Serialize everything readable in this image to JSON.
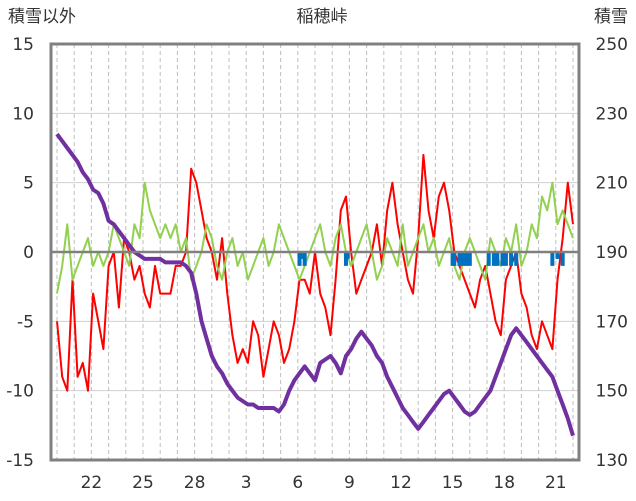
{
  "chart_data": {
    "type": "line",
    "title": "稲穂峠",
    "ylabel_left": "積雪以外",
    "ylabel_right": "積雪",
    "ylim_left": [
      -15,
      15
    ],
    "yticks_left": [
      15,
      10,
      5,
      0,
      -5,
      -10,
      -15
    ],
    "ylim_right": [
      130,
      250
    ],
    "yticks_right": [
      250,
      230,
      210,
      190,
      170,
      150,
      130
    ],
    "x_domain": [
      0,
      30
    ],
    "x_ticks": [
      {
        "label": "22",
        "x": 2
      },
      {
        "label": "25",
        "x": 5
      },
      {
        "label": "28",
        "x": 8
      },
      {
        "label": "3",
        "x": 11
      },
      {
        "label": "6",
        "x": 14
      },
      {
        "label": "9",
        "x": 17
      },
      {
        "label": "12",
        "x": 20
      },
      {
        "label": "15",
        "x": 23
      },
      {
        "label": "18",
        "x": 26
      },
      {
        "label": "21",
        "x": 29
      }
    ],
    "grid": true,
    "colors": {
      "red": "#ff0000",
      "green": "#92d050",
      "purple": "#7030a0",
      "blue": "#0070c0",
      "frame": "#808080",
      "zero": "#808080"
    },
    "series": [
      {
        "color": "red",
        "axis": "left",
        "x": [
          0,
          0.3,
          0.6,
          0.9,
          1.2,
          1.5,
          1.8,
          2.1,
          2.4,
          2.7,
          3,
          3.3,
          3.6,
          3.9,
          4.2,
          4.5,
          4.8,
          5.1,
          5.4,
          5.7,
          6,
          6.3,
          6.6,
          6.9,
          7.2,
          7.5,
          7.8,
          8.1,
          8.4,
          8.7,
          9,
          9.3,
          9.6,
          9.9,
          10.2,
          10.5,
          10.8,
          11.1,
          11.4,
          11.7,
          12,
          12.3,
          12.6,
          12.9,
          13.2,
          13.5,
          13.8,
          14.1,
          14.4,
          14.7,
          15,
          15.3,
          15.6,
          15.9,
          16.2,
          16.5,
          16.8,
          17.1,
          17.4,
          17.7,
          18,
          18.3,
          18.6,
          18.9,
          19.2,
          19.5,
          19.8,
          20.1,
          20.4,
          20.7,
          21,
          21.3,
          21.6,
          21.9,
          22.2,
          22.5,
          22.8,
          23.1,
          23.4,
          23.7,
          24,
          24.3,
          24.6,
          24.9,
          25.2,
          25.5,
          25.8,
          26.1,
          26.4,
          26.7,
          27,
          27.3,
          27.6,
          27.9,
          28.2,
          28.5,
          28.8,
          29.1,
          29.4,
          29.7,
          30
        ],
        "y": [
          -5,
          -9,
          -10,
          -2,
          -9,
          -8,
          -10,
          -3,
          -5,
          -7,
          -1,
          0,
          -4,
          1,
          0,
          -2,
          -1,
          -3,
          -4,
          -1,
          -3,
          -3,
          -3,
          -1,
          -1,
          0,
          6,
          5,
          3,
          1,
          0,
          -2,
          1,
          -3,
          -6,
          -8,
          -7,
          -8,
          -5,
          -6,
          -9,
          -7,
          -5,
          -6,
          -8,
          -7,
          -5,
          -2,
          -2,
          -3,
          0,
          -3,
          -4,
          -6,
          -2,
          3,
          4,
          0,
          -3,
          -2,
          -1,
          0,
          2,
          -1,
          3,
          5,
          2,
          0,
          -2,
          -3,
          1,
          7,
          3,
          1,
          4,
          5,
          3,
          0,
          -1,
          -2,
          -3,
          -4,
          -2,
          -1,
          -3,
          -5,
          -6,
          -2,
          -1,
          0,
          -3,
          -4,
          -6,
          -7,
          -5,
          -6,
          -7,
          -2,
          1,
          5,
          2
        ],
        "notes": ""
      },
      {
        "color": "green",
        "axis": "left",
        "x": [
          0,
          0.3,
          0.6,
          0.9,
          1.2,
          1.5,
          1.8,
          2.1,
          2.4,
          2.7,
          3,
          3.3,
          3.6,
          3.9,
          4.2,
          4.5,
          4.8,
          5.1,
          5.4,
          5.7,
          6,
          6.3,
          6.6,
          6.9,
          7.2,
          7.5,
          7.8,
          8.1,
          8.4,
          8.7,
          9,
          9.3,
          9.6,
          9.9,
          10.2,
          10.5,
          10.8,
          11.1,
          11.4,
          11.7,
          12,
          12.3,
          12.6,
          12.9,
          13.2,
          13.5,
          13.8,
          14.1,
          14.4,
          14.7,
          15,
          15.3,
          15.6,
          15.9,
          16.2,
          16.5,
          16.8,
          17.1,
          17.4,
          17.7,
          18,
          18.3,
          18.6,
          18.9,
          19.2,
          19.5,
          19.8,
          20.1,
          20.4,
          20.7,
          21,
          21.3,
          21.6,
          21.9,
          22.2,
          22.5,
          22.8,
          23.1,
          23.4,
          23.7,
          24,
          24.3,
          24.6,
          24.9,
          25.2,
          25.5,
          25.8,
          26.1,
          26.4,
          26.7,
          27,
          27.3,
          27.6,
          27.9,
          28.2,
          28.5,
          28.8,
          29.1,
          29.4,
          29.7,
          30
        ],
        "y": [
          -3,
          -1,
          2,
          -2,
          -1,
          0,
          1,
          -1,
          0,
          -1,
          0,
          2,
          1,
          0,
          -1,
          2,
          1,
          5,
          3,
          2,
          1,
          2,
          1,
          2,
          0,
          1,
          -2,
          -1,
          0,
          2,
          1,
          -1,
          -2,
          0,
          1,
          -1,
          0,
          -2,
          -1,
          0,
          1,
          -1,
          0,
          2,
          1,
          0,
          -1,
          -2,
          -1,
          0,
          1,
          2,
          0,
          -1,
          1,
          2,
          0,
          -1,
          0,
          1,
          2,
          0,
          -2,
          -1,
          1,
          0,
          -1,
          2,
          -1,
          0,
          1,
          2,
          0,
          1,
          -1,
          0,
          1,
          -1,
          -2,
          0,
          1,
          0,
          -1,
          -2,
          1,
          0,
          -1,
          1,
          0,
          2,
          -1,
          0,
          2,
          1,
          4,
          3,
          5,
          2,
          3,
          2,
          1
        ],
        "notes": ""
      },
      {
        "color": "purple",
        "axis": "right",
        "x": [
          0,
          0.3,
          0.6,
          0.9,
          1.2,
          1.5,
          1.8,
          2.1,
          2.4,
          2.7,
          3,
          3.3,
          3.6,
          3.9,
          4.2,
          4.5,
          4.8,
          5.1,
          5.4,
          5.7,
          6,
          6.3,
          6.6,
          6.9,
          7.2,
          7.5,
          7.8,
          8.1,
          8.4,
          8.7,
          9,
          9.3,
          9.6,
          9.9,
          10.2,
          10.5,
          10.8,
          11.1,
          11.4,
          11.7,
          12,
          12.3,
          12.6,
          12.9,
          13.2,
          13.5,
          13.8,
          14.1,
          14.4,
          14.7,
          15,
          15.3,
          15.6,
          15.9,
          16.2,
          16.5,
          16.8,
          17.1,
          17.4,
          17.7,
          18,
          18.3,
          18.6,
          18.9,
          19.2,
          19.5,
          19.8,
          20.1,
          20.4,
          20.7,
          21,
          21.3,
          21.6,
          21.9,
          22.2,
          22.5,
          22.8,
          23.1,
          23.4,
          23.7,
          24,
          24.3,
          24.6,
          24.9,
          25.2,
          25.5,
          25.8,
          26.1,
          26.4,
          26.7,
          27,
          27.3,
          27.6,
          27.9,
          28.2,
          28.5,
          28.8,
          29.1,
          29.4,
          29.7,
          30
        ],
        "y": [
          224,
          222,
          220,
          218,
          216,
          213,
          211,
          208,
          207,
          204,
          199,
          198,
          196,
          194,
          192,
          190,
          189,
          188,
          188,
          188,
          188,
          187,
          187,
          187,
          187,
          186,
          184,
          178,
          170,
          165,
          160,
          157,
          155,
          152,
          150,
          148,
          147,
          146,
          146,
          145,
          145,
          145,
          145,
          144,
          146,
          150,
          153,
          155,
          157,
          155,
          153,
          158,
          159,
          160,
          158,
          155,
          160,
          162,
          165,
          167,
          165,
          163,
          160,
          158,
          154,
          151,
          148,
          145,
          143,
          141,
          139,
          141,
          143,
          145,
          147,
          149,
          150,
          148,
          146,
          144,
          143,
          144,
          146,
          148,
          150,
          154,
          158,
          162,
          166,
          168,
          166,
          164,
          162,
          160,
          158,
          156,
          154,
          150,
          146,
          142,
          137
        ]
      },
      {
        "color": "blue",
        "axis": "left",
        "x": [
          14.1,
          14.2,
          14.4,
          16.8,
          16.9,
          23,
          23.1,
          23.4,
          23.6,
          23.8,
          24,
          25.1,
          25.4,
          25.6,
          25.9,
          26.1,
          26.4,
          26.7,
          28.8,
          29.1,
          29.4
        ],
        "y": [
          -1,
          -0.5,
          -1,
          -1,
          -0.5,
          -1,
          -1,
          -1,
          -1,
          -1,
          -1,
          -1,
          -1,
          -1,
          -1,
          -1,
          -1,
          -1,
          -1,
          -0.5,
          -1
        ],
        "render": "bars"
      }
    ]
  }
}
